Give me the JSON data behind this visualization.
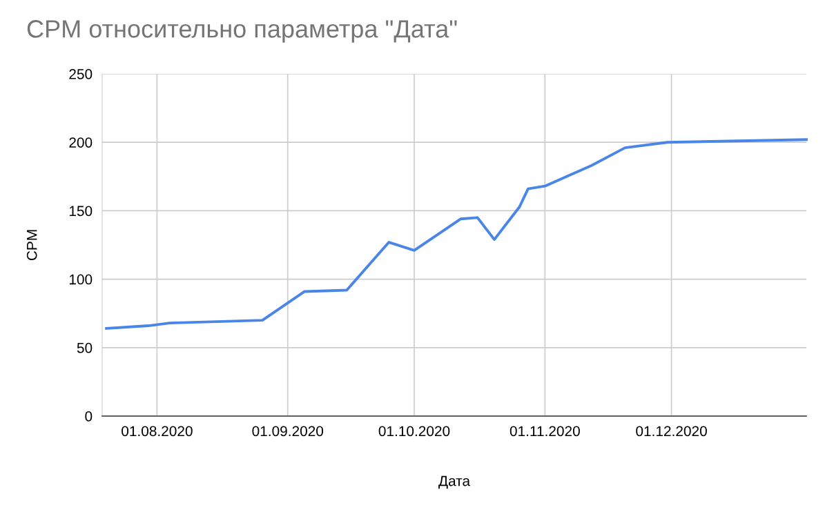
{
  "chart_data": {
    "type": "line",
    "title": "CPM относительно параметра \"Дата\"",
    "xlabel": "Дата",
    "ylabel": "CPM",
    "x": [
      "2020-07-20",
      "2020-07-30",
      "2020-08-04",
      "2020-08-26",
      "2020-09-05",
      "2020-09-15",
      "2020-09-21",
      "2020-09-25",
      "2020-10-01",
      "2020-10-12",
      "2020-10-16",
      "2020-10-20",
      "2020-10-26",
      "2020-10-28",
      "2020-11-01",
      "2020-11-12",
      "2020-11-20",
      "2020-11-30",
      "2021-01-02"
    ],
    "series": [
      {
        "color": "#4a86e8",
        "values": [
          64,
          66,
          68,
          70,
          91,
          92,
          113,
          127,
          121,
          144,
          145,
          129,
          153,
          166,
          168,
          183,
          196,
          200,
          202
        ]
      }
    ],
    "xlim": [
      "2020-07-19",
      "2021-01-02"
    ],
    "xticks": [
      {
        "value": "2020-08-01",
        "label": "01.08.2020"
      },
      {
        "value": "2020-09-01",
        "label": "01.09.2020"
      },
      {
        "value": "2020-10-01",
        "label": "01.10.2020"
      },
      {
        "value": "2020-11-01",
        "label": "01.11.2020"
      },
      {
        "value": "2020-12-01",
        "label": "01.12.2020"
      }
    ],
    "ylim": [
      0,
      250
    ],
    "yticks": [
      0,
      50,
      100,
      150,
      200,
      250
    ],
    "grid": true,
    "legend": false,
    "marker": "none",
    "line_style": "solid"
  }
}
